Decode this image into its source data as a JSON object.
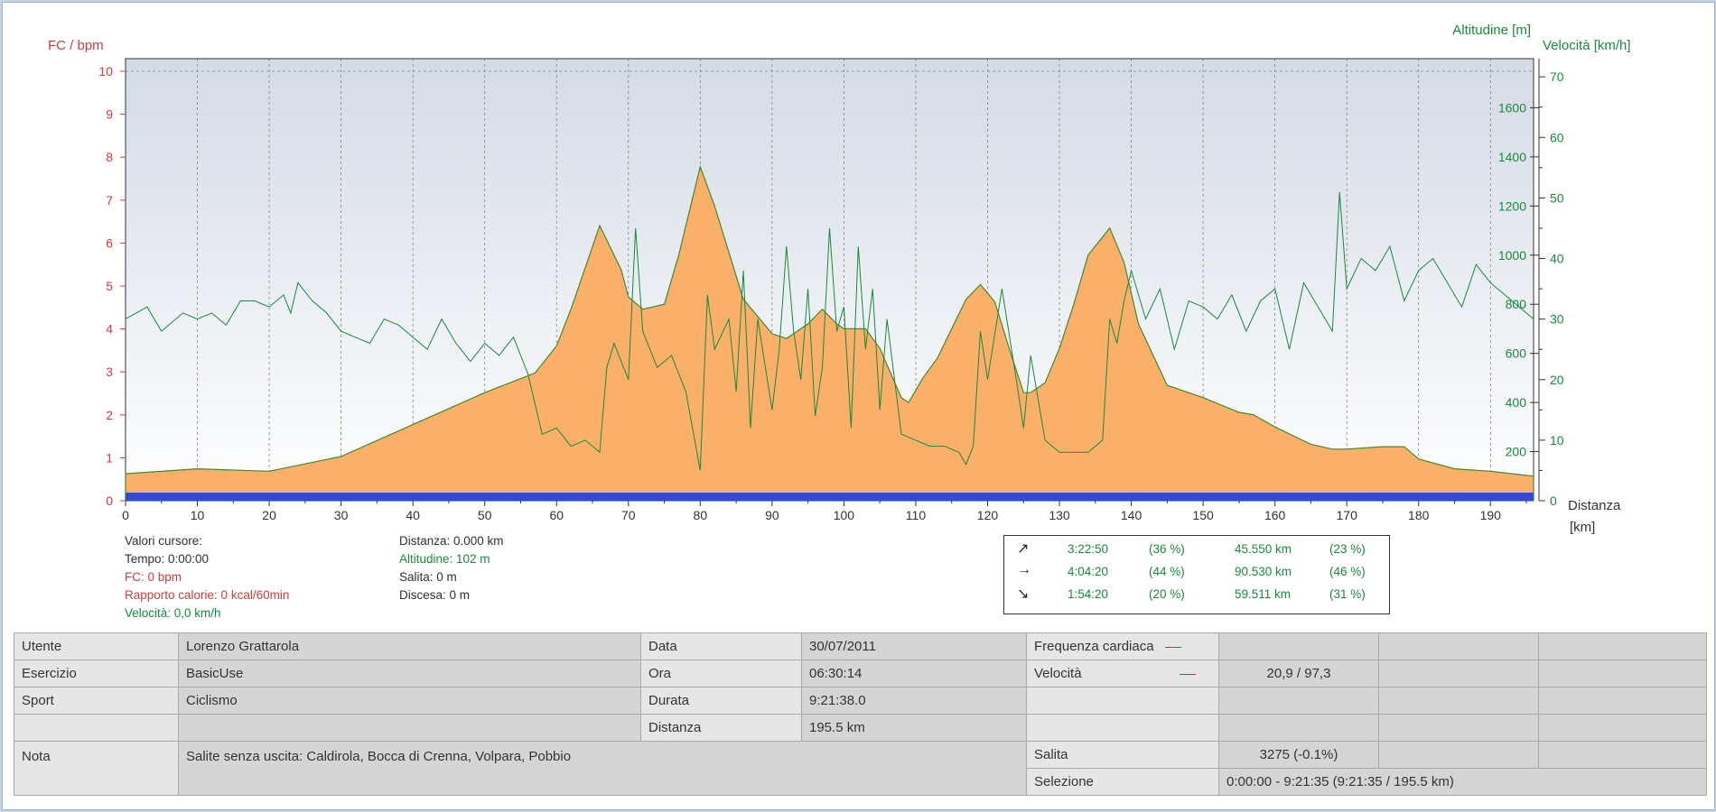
{
  "chart_data": {
    "type": "area",
    "axes": {
      "left_label": "FC / bpm",
      "left_ticks": [
        "0",
        "1",
        "2",
        "3",
        "4",
        "5",
        "6",
        "7",
        "8",
        "9",
        "10"
      ],
      "right_alt_label": "Altitudine [m]",
      "right_alt_ticks": [
        "200",
        "400",
        "600",
        "800",
        "1000",
        "1200",
        "1400",
        "1600"
      ],
      "right_speed_label": "Velocità [km/h]",
      "right_speed_ticks": [
        "0",
        "10",
        "20",
        "30",
        "40",
        "50",
        "60",
        "70"
      ],
      "x_label_1": "Distanza",
      "x_label_2": "[km]",
      "x_ticks": [
        "0",
        "10",
        "20",
        "30",
        "40",
        "50",
        "60",
        "70",
        "80",
        "90",
        "100",
        "110",
        "120",
        "130",
        "140",
        "150",
        "160",
        "170",
        "180",
        "190"
      ],
      "xlim": [
        0,
        196
      ],
      "alt_ylim": [
        0,
        1800
      ],
      "speed_ylim": [
        0,
        73
      ],
      "hr_ylim": [
        0,
        10
      ],
      "grid": true
    },
    "series": [
      {
        "name": "Altitudine",
        "color": "#fbb06a",
        "x": [
          0,
          10,
          20,
          30,
          40,
          50,
          57,
          60,
          62,
          66,
          69,
          70,
          72,
          75,
          77,
          80,
          82,
          86,
          90,
          92,
          95,
          97,
          99,
          100,
          103,
          105,
          108,
          109,
          111,
          113,
          115,
          117,
          119,
          121,
          123,
          125,
          126,
          128,
          130,
          132,
          134,
          137,
          139,
          141,
          145,
          150,
          155,
          157,
          160,
          165,
          168,
          170,
          175,
          178,
          180,
          185,
          190,
          193,
          196
        ],
        "y": [
          110,
          130,
          120,
          180,
          310,
          440,
          520,
          630,
          780,
          1120,
          940,
          830,
          780,
          800,
          1000,
          1360,
          1200,
          820,
          680,
          660,
          720,
          780,
          720,
          700,
          700,
          620,
          420,
          400,
          500,
          580,
          700,
          820,
          880,
          810,
          620,
          440,
          440,
          480,
          620,
          800,
          1000,
          1110,
          970,
          720,
          470,
          420,
          360,
          350,
          300,
          230,
          210,
          210,
          220,
          220,
          170,
          130,
          120,
          110,
          100
        ]
      },
      {
        "name": "Velocità",
        "color": "#178a3c",
        "x": [
          0,
          3,
          5,
          8,
          10,
          12,
          14,
          16,
          18,
          20,
          22,
          23,
          24,
          26,
          28,
          30,
          32,
          34,
          36,
          38,
          40,
          42,
          44,
          46,
          48,
          50,
          52,
          54,
          56,
          57,
          58,
          60,
          62,
          64,
          66,
          67,
          68,
          70,
          71,
          72,
          74,
          76,
          78,
          80,
          81,
          82,
          84,
          85,
          86,
          87,
          88,
          90,
          91,
          92,
          93,
          94,
          95,
          96,
          97,
          98,
          99,
          100,
          101,
          102,
          103,
          104,
          105,
          106,
          108,
          110,
          112,
          114,
          116,
          117,
          118,
          119,
          120,
          122,
          124,
          125,
          126,
          128,
          130,
          132,
          134,
          136,
          137,
          138,
          139,
          140,
          142,
          144,
          146,
          148,
          150,
          152,
          154,
          156,
          158,
          160,
          162,
          164,
          166,
          168,
          169,
          170,
          172,
          174,
          176,
          178,
          180,
          182,
          184,
          186,
          188,
          190,
          192,
          194,
          196
        ],
        "y": [
          30,
          32,
          28,
          31,
          30,
          31,
          29,
          33,
          33,
          32,
          34,
          31,
          36,
          33,
          31,
          28,
          27,
          26,
          30,
          29,
          27,
          25,
          30,
          26,
          23,
          26,
          24,
          27,
          21,
          16,
          11,
          12,
          9,
          10,
          8,
          22,
          26,
          20,
          45,
          28,
          22,
          24,
          18,
          5,
          34,
          25,
          30,
          18,
          38,
          12,
          30,
          15,
          25,
          42,
          28,
          20,
          35,
          14,
          22,
          45,
          28,
          32,
          12,
          42,
          25,
          35,
          15,
          30,
          11,
          10,
          9,
          9,
          8,
          6,
          9,
          28,
          20,
          35,
          20,
          12,
          24,
          10,
          8,
          8,
          8,
          10,
          30,
          26,
          33,
          38,
          30,
          35,
          25,
          33,
          32,
          30,
          34,
          28,
          33,
          35,
          25,
          36,
          32,
          28,
          51,
          35,
          40,
          38,
          42,
          33,
          38,
          40,
          36,
          32,
          39,
          36,
          34,
          32,
          30
        ]
      },
      {
        "name": "FC",
        "color": "#d23a3a",
        "x": [
          0,
          196
        ],
        "y": [
          0,
          0
        ]
      }
    ]
  },
  "cursor": {
    "title": "Valori cursore:",
    "tempo": "Tempo: 0:00:00",
    "fc": "FC: 0 bpm",
    "calorie": "Rapporto calorie: 0 kcal/60min",
    "velocita": "Velocità: 0,0 km/h",
    "distanza": "Distanza: 0.000 km",
    "altitudine": "Altitudine: 102 m",
    "salita": "Salita: 0 m",
    "discesa": "Discesa: 0 m"
  },
  "stats": [
    {
      "icon": "arrow-up-right-icon",
      "glyph": "↗",
      "time": "3:22:50",
      "time_pct": "(36 %)",
      "dist": "45.550 km",
      "dist_pct": "(23 %)"
    },
    {
      "icon": "arrow-right-icon",
      "glyph": "→",
      "time": "4:04:20",
      "time_pct": "(44 %)",
      "dist": "90.530 km",
      "dist_pct": "(46 %)"
    },
    {
      "icon": "arrow-down-right-icon",
      "glyph": "↘",
      "time": "1:54:20",
      "time_pct": "(20 %)",
      "dist": "59.511 km",
      "dist_pct": "(31 %)"
    }
  ],
  "info": {
    "utente_label": "Utente",
    "utente": "Lorenzo Grattarola",
    "esercizio_label": "Esercizio",
    "esercizio": "BasicUse",
    "sport_label": "Sport",
    "sport": "Ciclismo",
    "nota_label": "Nota",
    "nota": "Salite senza uscita: Caldirola, Bocca di Crenna, Volpara, Pobbio",
    "data_label": "Data",
    "data": "30/07/2011",
    "ora_label": "Ora",
    "ora": "06:30:14",
    "durata_label": "Durata",
    "durata": "9:21:38.0",
    "distanza_label": "Distanza",
    "distanza": "195.5 km",
    "fc_label": "Frequenza cardiaca",
    "velocita_label": "Velocità",
    "velocita": "20,9 / 97,3",
    "salita_label": "Salita",
    "salita": "3275 (-0.1%)",
    "selezione_label": "Selezione",
    "selezione": "0:00:00 - 9:21:35 (9:21:35 / 195.5 km)"
  },
  "colors": {
    "hr": "#d23a3a",
    "speed": "#178a3c",
    "altitude_fill": "#fbb06a",
    "altitude_line": "#3f8a33",
    "hr_band": "#2b4fcc"
  }
}
